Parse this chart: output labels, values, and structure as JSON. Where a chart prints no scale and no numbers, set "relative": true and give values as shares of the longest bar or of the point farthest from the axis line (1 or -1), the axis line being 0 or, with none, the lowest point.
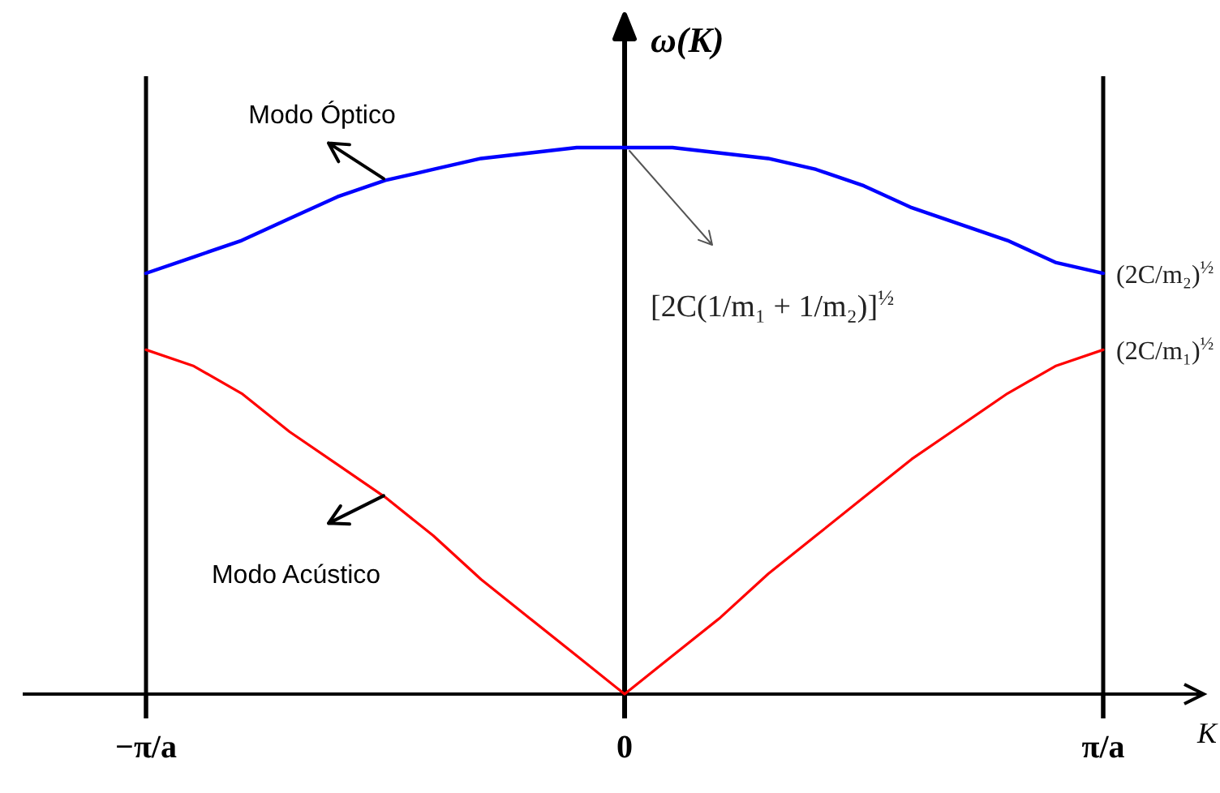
{
  "chart_data": {
    "type": "line",
    "relative": true,
    "xlabel": "K",
    "ylabel": "ω(K)",
    "categories": [
      "−π/a",
      null,
      null,
      null,
      null,
      null,
      null,
      null,
      null,
      null,
      "0",
      null,
      null,
      null,
      null,
      null,
      null,
      null,
      null,
      null,
      "π/a"
    ],
    "series": [
      {
        "name": "Modo Óptico",
        "color": "#0000ff",
        "values": [
          0.77,
          0.8,
          0.83,
          0.87,
          0.91,
          0.94,
          0.96,
          0.98,
          0.99,
          1,
          1,
          1,
          0.99,
          0.98,
          0.96,
          0.93,
          0.89,
          0.86,
          0.83,
          0.79,
          0.77
        ]
      },
      {
        "name": "Modo Acústico",
        "color": "#ff0000",
        "values": [
          0.63,
          0.6,
          0.55,
          0.48,
          0.42,
          0.36,
          0.29,
          0.21,
          0.14,
          0.07,
          0,
          0.07,
          0.14,
          0.22,
          0.29,
          0.36,
          0.43,
          0.49,
          0.55,
          0.6,
          0.63
        ]
      }
    ],
    "ref_lines": [
      {
        "axis": "x",
        "value": "−π/a",
        "color": "#000000"
      },
      {
        "axis": "x",
        "value": "π/a",
        "color": "#000000"
      }
    ],
    "annotations": [
      {
        "text": "[2C(1/m₁ + 1/m₂)]$^{½}$",
        "x": "0",
        "y": 1
      },
      {
        "text": "(2C/m₂)$^{½}$",
        "x": "π/a",
        "y": 0.77
      },
      {
        "text": "(2C/m₁)$^{½}$",
        "x": "π/a",
        "y": 0.63
      }
    ]
  }
}
